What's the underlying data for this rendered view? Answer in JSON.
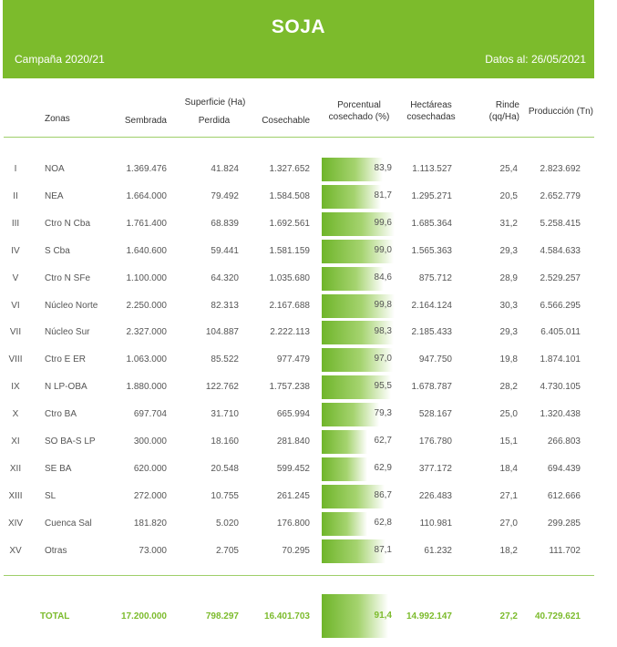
{
  "header": {
    "title": "SOJA",
    "campaign": "Campaña 2020/21",
    "date": "Datos al: 26/05/2021",
    "color": "#7cbb2c"
  },
  "columns": {
    "zonas": "Zonas",
    "superficie": "Superficie (Ha)",
    "sembrada": "Sembrada",
    "perdida": "Perdida",
    "cosechable": "Cosechable",
    "porcentual": "Porcentual cosechado (%)",
    "hectareas": "Hectáreas cosechadas",
    "rinde": "Rinde (qq/Ha)",
    "produccion": "Producción (Tn)"
  },
  "rows": [
    {
      "roman": "I",
      "zona": "NOA",
      "sembrada": "1.369.476",
      "perdida": "41.824",
      "cosechable": "1.327.652",
      "pct": "83,9",
      "pct_value": 83.9,
      "hectareas": "1.113.527",
      "rinde": "25,4",
      "produccion": "2.823.692"
    },
    {
      "roman": "II",
      "zona": "NEA",
      "sembrada": "1.664.000",
      "perdida": "79.492",
      "cosechable": "1.584.508",
      "pct": "81,7",
      "pct_value": 81.7,
      "hectareas": "1.295.271",
      "rinde": "20,5",
      "produccion": "2.652.779"
    },
    {
      "roman": "III",
      "zona": "Ctro N Cba",
      "sembrada": "1.761.400",
      "perdida": "68.839",
      "cosechable": "1.692.561",
      "pct": "99,6",
      "pct_value": 99.6,
      "hectareas": "1.685.364",
      "rinde": "31,2",
      "produccion": "5.258.415"
    },
    {
      "roman": "IV",
      "zona": "S Cba",
      "sembrada": "1.640.600",
      "perdida": "59.441",
      "cosechable": "1.581.159",
      "pct": "99,0",
      "pct_value": 99.0,
      "hectareas": "1.565.363",
      "rinde": "29,3",
      "produccion": "4.584.633"
    },
    {
      "roman": "V",
      "zona": "Ctro N SFe",
      "sembrada": "1.100.000",
      "perdida": "64.320",
      "cosechable": "1.035.680",
      "pct": "84,6",
      "pct_value": 84.6,
      "hectareas": "875.712",
      "rinde": "28,9",
      "produccion": "2.529.257"
    },
    {
      "roman": "VI",
      "zona": "Núcleo Norte",
      "sembrada": "2.250.000",
      "perdida": "82.313",
      "cosechable": "2.167.688",
      "pct": "99,8",
      "pct_value": 99.8,
      "hectareas": "2.164.124",
      "rinde": "30,3",
      "produccion": "6.566.295"
    },
    {
      "roman": "VII",
      "zona": "Núcleo Sur",
      "sembrada": "2.327.000",
      "perdida": "104.887",
      "cosechable": "2.222.113",
      "pct": "98,3",
      "pct_value": 98.3,
      "hectareas": "2.185.433",
      "rinde": "29,3",
      "produccion": "6.405.011"
    },
    {
      "roman": "VIII",
      "zona": "Ctro E ER",
      "sembrada": "1.063.000",
      "perdida": "85.522",
      "cosechable": "977.479",
      "pct": "97,0",
      "pct_value": 97.0,
      "hectareas": "947.750",
      "rinde": "19,8",
      "produccion": "1.874.101"
    },
    {
      "roman": "IX",
      "zona": "N LP-OBA",
      "sembrada": "1.880.000",
      "perdida": "122.762",
      "cosechable": "1.757.238",
      "pct": "95,5",
      "pct_value": 95.5,
      "hectareas": "1.678.787",
      "rinde": "28,2",
      "produccion": "4.730.105"
    },
    {
      "roman": "X",
      "zona": "Ctro BA",
      "sembrada": "697.704",
      "perdida": "31.710",
      "cosechable": "665.994",
      "pct": "79,3",
      "pct_value": 79.3,
      "hectareas": "528.167",
      "rinde": "25,0",
      "produccion": "1.320.438"
    },
    {
      "roman": "XI",
      "zona": "SO BA-S LP",
      "sembrada": "300.000",
      "perdida": "18.160",
      "cosechable": "281.840",
      "pct": "62,7",
      "pct_value": 62.7,
      "hectareas": "176.780",
      "rinde": "15,1",
      "produccion": "266.803"
    },
    {
      "roman": "XII",
      "zona": "SE BA",
      "sembrada": "620.000",
      "perdida": "20.548",
      "cosechable": "599.452",
      "pct": "62,9",
      "pct_value": 62.9,
      "hectareas": "377.172",
      "rinde": "18,4",
      "produccion": "694.439"
    },
    {
      "roman": "XIII",
      "zona": "SL",
      "sembrada": "272.000",
      "perdida": "10.755",
      "cosechable": "261.245",
      "pct": "86,7",
      "pct_value": 86.7,
      "hectareas": "226.483",
      "rinde": "27,1",
      "produccion": "612.666"
    },
    {
      "roman": "XIV",
      "zona": "Cuenca Sal",
      "sembrada": "181.820",
      "perdida": "5.020",
      "cosechable": "176.800",
      "pct": "62,8",
      "pct_value": 62.8,
      "hectareas": "110.981",
      "rinde": "27,0",
      "produccion": "299.285"
    },
    {
      "roman": "XV",
      "zona": "Otras",
      "sembrada": "73.000",
      "perdida": "2.705",
      "cosechable": "70.295",
      "pct": "87,1",
      "pct_value": 87.1,
      "hectareas": "61.232",
      "rinde": "18,2",
      "produccion": "111.702"
    }
  ],
  "total": {
    "label": "TOTAL",
    "sembrada": "17.200.000",
    "perdida": "798.297",
    "cosechable": "16.401.703",
    "pct": "91,4",
    "pct_value": 91.4,
    "hectareas": "14.992.147",
    "rinde": "27,2",
    "produccion": "40.729.621"
  }
}
